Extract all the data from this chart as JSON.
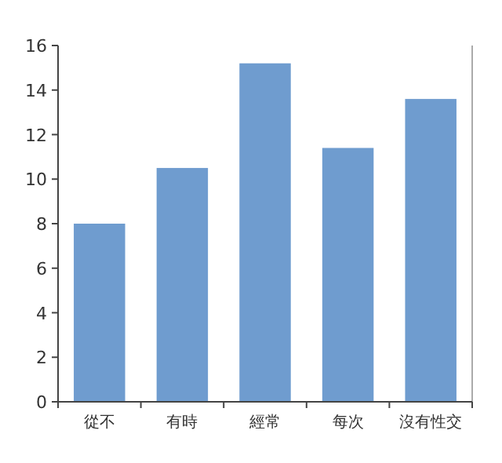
{
  "chart_data": {
    "type": "bar",
    "categories": [
      "從不",
      "有時",
      "經常",
      "每次",
      "沒有性交"
    ],
    "values": [
      8.0,
      10.5,
      15.2,
      11.4,
      13.6
    ],
    "color": "#6f9ccf",
    "ylim": [
      0,
      16
    ],
    "yticks": [
      0,
      2,
      4,
      6,
      8,
      10,
      12,
      14,
      16
    ],
    "grid": false
  }
}
